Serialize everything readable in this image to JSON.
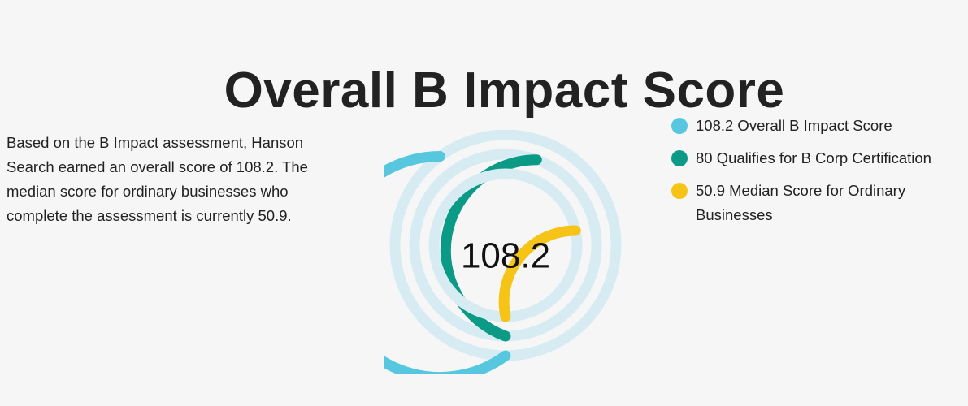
{
  "header": {
    "title": "Overall B Impact Score"
  },
  "description": "Based on the B Impact assessment, Hanson Search earned an overall score of 108.2. The median score for ordinary businesses who complete the assessment is currently 50.9.",
  "chart_data": {
    "type": "radial-bar",
    "center_label": "108.2",
    "track_color": "#d6ecf2",
    "series": [
      {
        "name": "Overall B Impact Score",
        "value": 108.2,
        "color": "#56c7df",
        "label": "108.2 Overall B Impact Score"
      },
      {
        "name": "Qualifies for B Corp Certification",
        "value": 80,
        "color": "#0a9a86",
        "label": "80 Qualifies for B Corp Certification"
      },
      {
        "name": "Median Score for Ordinary Businesses",
        "value": 50.9,
        "color": "#f6c417",
        "label": "50.9 Median Score for Ordinary Businesses"
      }
    ]
  }
}
